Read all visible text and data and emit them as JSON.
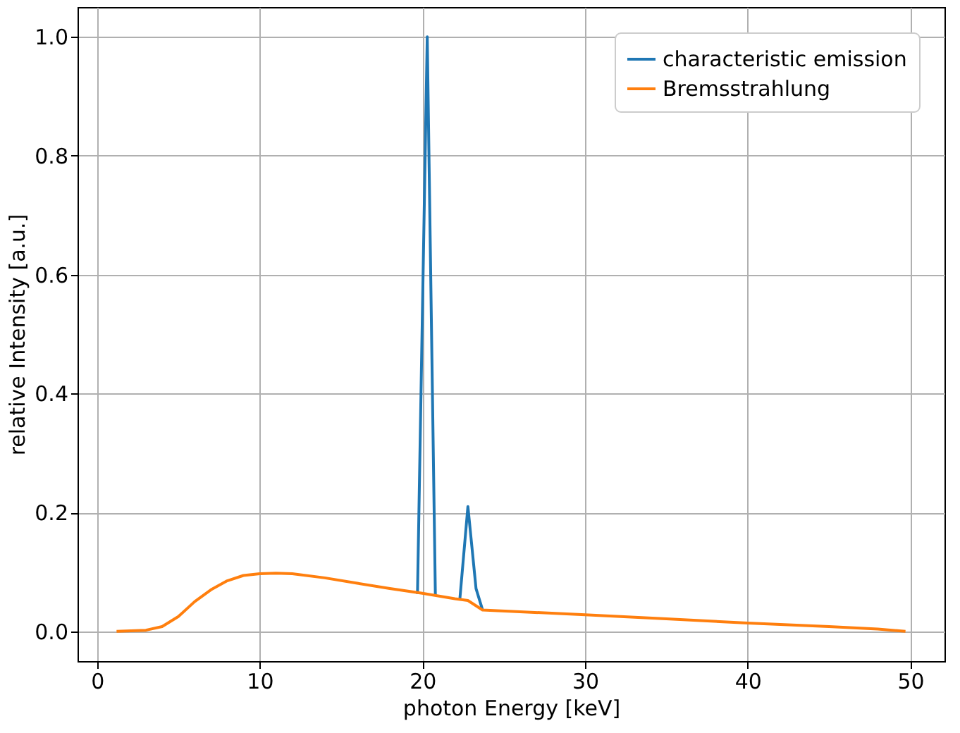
{
  "chart_data": {
    "type": "line",
    "xlabel": "photon Energy [keV]",
    "ylabel": "relative Intensity [a.u.]",
    "xlim": [
      -1.2,
      52.1
    ],
    "ylim": [
      -0.05,
      1.05
    ],
    "xticks": [
      0,
      10,
      20,
      30,
      40,
      50
    ],
    "yticks": [
      {
        "value": 0,
        "label": "0.0"
      },
      0.2,
      0.4,
      0.6,
      0.8,
      {
        "value": 1,
        "label": "1.0"
      }
    ],
    "grid": true,
    "legend": "top right",
    "line_style": "solid",
    "series": [
      {
        "name": "characteristic emission",
        "color": "#1f77b4",
        "x": [
          19.7,
          20.3,
          20.8,
          21.5,
          22.3,
          22.8,
          23.3,
          23.7
        ],
        "values": [
          0.063,
          1.0,
          0.061,
          null,
          0.053,
          0.21,
          0.072,
          0.036
        ]
      },
      {
        "name": "Bremsstrahlung",
        "color": "#ff7f0e",
        "x": [
          1.2,
          3,
          4,
          5,
          6,
          7,
          8,
          9,
          10,
          11,
          12,
          14,
          16,
          18,
          20,
          22,
          22.8,
          23.7,
          26,
          30,
          35,
          40,
          45,
          48,
          49.7
        ],
        "values": [
          0,
          0.002,
          0.008,
          0.025,
          0.05,
          0.07,
          0.085,
          0.094,
          0.097,
          0.098,
          0.097,
          0.09,
          0.081,
          0.072,
          0.064,
          0.055,
          0.052,
          0.036,
          0.033,
          0.028,
          0.021,
          0.014,
          0.008,
          0.004,
          0
        ]
      }
    ]
  }
}
